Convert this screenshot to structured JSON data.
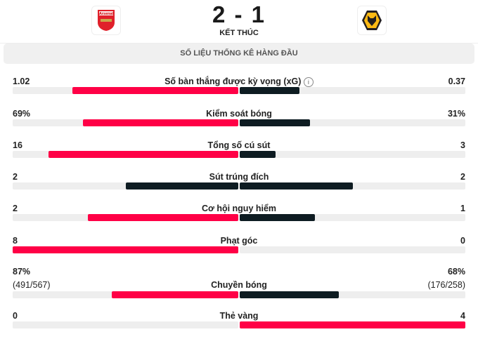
{
  "match": {
    "home_team": "Arsenal",
    "home_score": 2,
    "away_score": 1,
    "score_text": "2 - 1",
    "status": "KẾT THÚC"
  },
  "section_title": "SỐ LIỆU THỐNG KÊ HÀNG ĐẦU",
  "colors": {
    "leader": "#ff0046",
    "other": "#0e1c22",
    "track": "#eeeeee"
  },
  "stats": [
    {
      "label": "Số bàn thắng được kỳ vọng (xG)",
      "home": "1.02",
      "away": "0.37",
      "home_num": 1.02,
      "away_num": 0.37,
      "info_icon": true
    },
    {
      "label": "Kiểm soát bóng",
      "home": "69%",
      "away": "31%",
      "home_num": 69,
      "away_num": 31
    },
    {
      "label": "Tổng số cú sút",
      "home": "16",
      "away": "3",
      "home_num": 16,
      "away_num": 3
    },
    {
      "label": "Sút trúng đích",
      "home": "2",
      "away": "2",
      "home_num": 2,
      "away_num": 2
    },
    {
      "label": "Cơ hội nguy hiểm",
      "home": "2",
      "away": "1",
      "home_num": 2,
      "away_num": 1
    },
    {
      "label": "Phạt góc",
      "home": "8",
      "away": "0",
      "home_num": 8,
      "away_num": 0
    },
    {
      "label": "Chuyền bóng",
      "home": "87%",
      "away": "68%",
      "home_sub": "(491/567)",
      "away_sub": "(176/258)",
      "home_num": 87,
      "away_num": 68
    },
    {
      "label": "Thẻ vàng",
      "home": "0",
      "away": "4",
      "home_num": 0,
      "away_num": 4
    }
  ]
}
